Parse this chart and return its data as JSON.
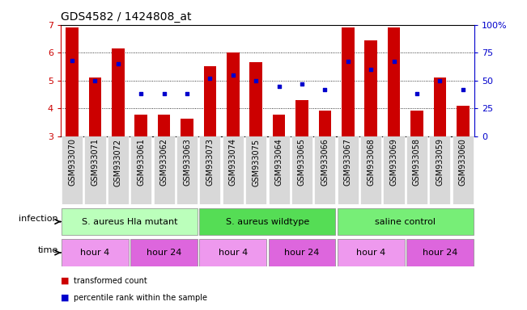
{
  "title": "GDS4582 / 1424808_at",
  "samples": [
    "GSM933070",
    "GSM933071",
    "GSM933072",
    "GSM933061",
    "GSM933062",
    "GSM933063",
    "GSM933073",
    "GSM933074",
    "GSM933075",
    "GSM933064",
    "GSM933065",
    "GSM933066",
    "GSM933067",
    "GSM933068",
    "GSM933069",
    "GSM933058",
    "GSM933059",
    "GSM933060"
  ],
  "red_values": [
    6.9,
    5.1,
    6.15,
    3.77,
    3.78,
    3.63,
    5.53,
    6.0,
    5.67,
    3.78,
    4.3,
    3.93,
    6.9,
    6.45,
    6.9,
    3.93,
    5.1,
    4.1
  ],
  "blue_percentiles": [
    68,
    50,
    65,
    38,
    38,
    38,
    52,
    55,
    50,
    45,
    47,
    42,
    67,
    60,
    67,
    38,
    50,
    42
  ],
  "ylim_left": [
    3,
    7
  ],
  "ylim_right": [
    0,
    100
  ],
  "yticks_left": [
    3,
    4,
    5,
    6,
    7
  ],
  "yticks_right": [
    0,
    25,
    50,
    75,
    100
  ],
  "ytick_labels_right": [
    "0",
    "25",
    "50",
    "75",
    "100%"
  ],
  "bar_color": "#cc0000",
  "dot_color": "#0000cc",
  "infection_groups": [
    {
      "label": "S. aureus Hla mutant",
      "start": 0,
      "end": 5,
      "color": "#bbffbb"
    },
    {
      "label": "S. aureus wildtype",
      "start": 6,
      "end": 11,
      "color": "#55dd55"
    },
    {
      "label": "saline control",
      "start": 12,
      "end": 17,
      "color": "#77ee77"
    }
  ],
  "time_groups": [
    {
      "label": "hour 4",
      "start": 0,
      "end": 2,
      "color": "#ee99ee"
    },
    {
      "label": "hour 24",
      "start": 3,
      "end": 5,
      "color": "#dd66dd"
    },
    {
      "label": "hour 4",
      "start": 6,
      "end": 8,
      "color": "#ee99ee"
    },
    {
      "label": "hour 24",
      "start": 9,
      "end": 11,
      "color": "#dd66dd"
    },
    {
      "label": "hour 4",
      "start": 12,
      "end": 14,
      "color": "#ee99ee"
    },
    {
      "label": "hour 24",
      "start": 15,
      "end": 17,
      "color": "#dd66dd"
    }
  ],
  "legend_items": [
    {
      "label": "transformed count",
      "color": "#cc0000"
    },
    {
      "label": "percentile rank within the sample",
      "color": "#0000cc"
    }
  ],
  "bar_width": 0.55,
  "axis_color_left": "#cc0000",
  "axis_color_right": "#0000cc",
  "tick_fontsize": 7,
  "label_fontsize": 8,
  "title_fontsize": 10
}
